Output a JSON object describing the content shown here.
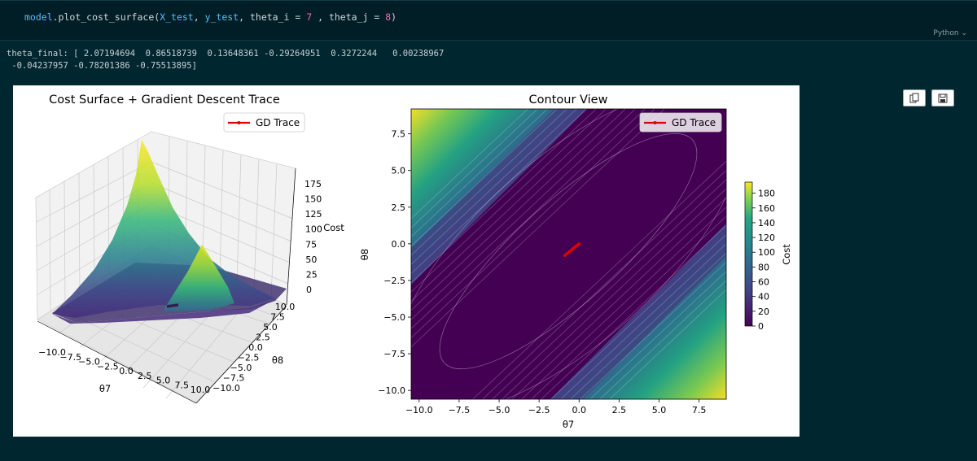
{
  "code_cell": {
    "tokens": {
      "obj": "model",
      "dot_fn": ".plot_cost_surface(",
      "arg1": "X_test",
      "sep1": ", ",
      "arg2": "y_test",
      "sep2": ", theta_i = ",
      "num1": "7",
      "sep3": " , theta_j = ",
      "num2": "8",
      "close": ")"
    },
    "language": "Python ⌄"
  },
  "output": {
    "line1": "theta_final: [ 2.07194694  0.86518739  0.13648361 -0.29264951  0.3272244   0.00238967",
    "line2": " -0.04237957 -0.78201386 -0.75513895]"
  },
  "toolbar": {
    "copy_icon": "copy-icon",
    "save_icon": "save-icon"
  },
  "colors": {
    "trace": "#e00000",
    "viridis_low": "#440154",
    "viridis_high": "#fde725"
  },
  "chart_data": [
    {
      "type": "surface3d",
      "title": "Cost Surface + Gradient Descent Trace",
      "xlabel": "θ7",
      "ylabel": "θ8",
      "zlabel": "Cost",
      "x_ticks": [
        "−10.0",
        "−7.5",
        "−5.0",
        "−2.5",
        "0.0",
        "2.5",
        "5.0",
        "7.5",
        "10.0"
      ],
      "y_ticks": [
        "−10.0",
        "−7.5",
        "−5.0",
        "−2.5",
        "0.0",
        "2.5",
        "5.0",
        "7.5",
        "10.0"
      ],
      "z_ticks": [
        "0",
        "25",
        "50",
        "75",
        "100",
        "125",
        "150",
        "175"
      ],
      "xlim": [
        -10,
        10
      ],
      "ylim": [
        -10,
        10
      ],
      "zlim": [
        0,
        190
      ],
      "legend": "GD Trace",
      "legend_position": "upper-right",
      "colormap": "viridis"
    },
    {
      "type": "contour",
      "title": "Contour View",
      "xlabel": "θ7",
      "ylabel": "θ8",
      "x_ticks": [
        "−10.0",
        "−7.5",
        "−5.0",
        "−2.5",
        "0.0",
        "2.5",
        "5.0",
        "7.5"
      ],
      "y_ticks": [
        "−10.0",
        "−7.5",
        "−5.0",
        "−2.5",
        "0.0",
        "2.5",
        "5.0",
        "7.5"
      ],
      "xlim": [
        -10.5,
        9.2
      ],
      "ylim": [
        -10.6,
        9.2
      ],
      "legend": "GD Trace",
      "legend_position": "upper-right",
      "trace": {
        "x": [
          -0.9,
          0.0
        ],
        "y": [
          -0.8,
          0.0
        ]
      },
      "colorbar": {
        "label": "Cost",
        "ticks": [
          "0",
          "20",
          "40",
          "60",
          "80",
          "100",
          "120",
          "140",
          "160",
          "180"
        ],
        "range": [
          0,
          195
        ]
      }
    }
  ]
}
